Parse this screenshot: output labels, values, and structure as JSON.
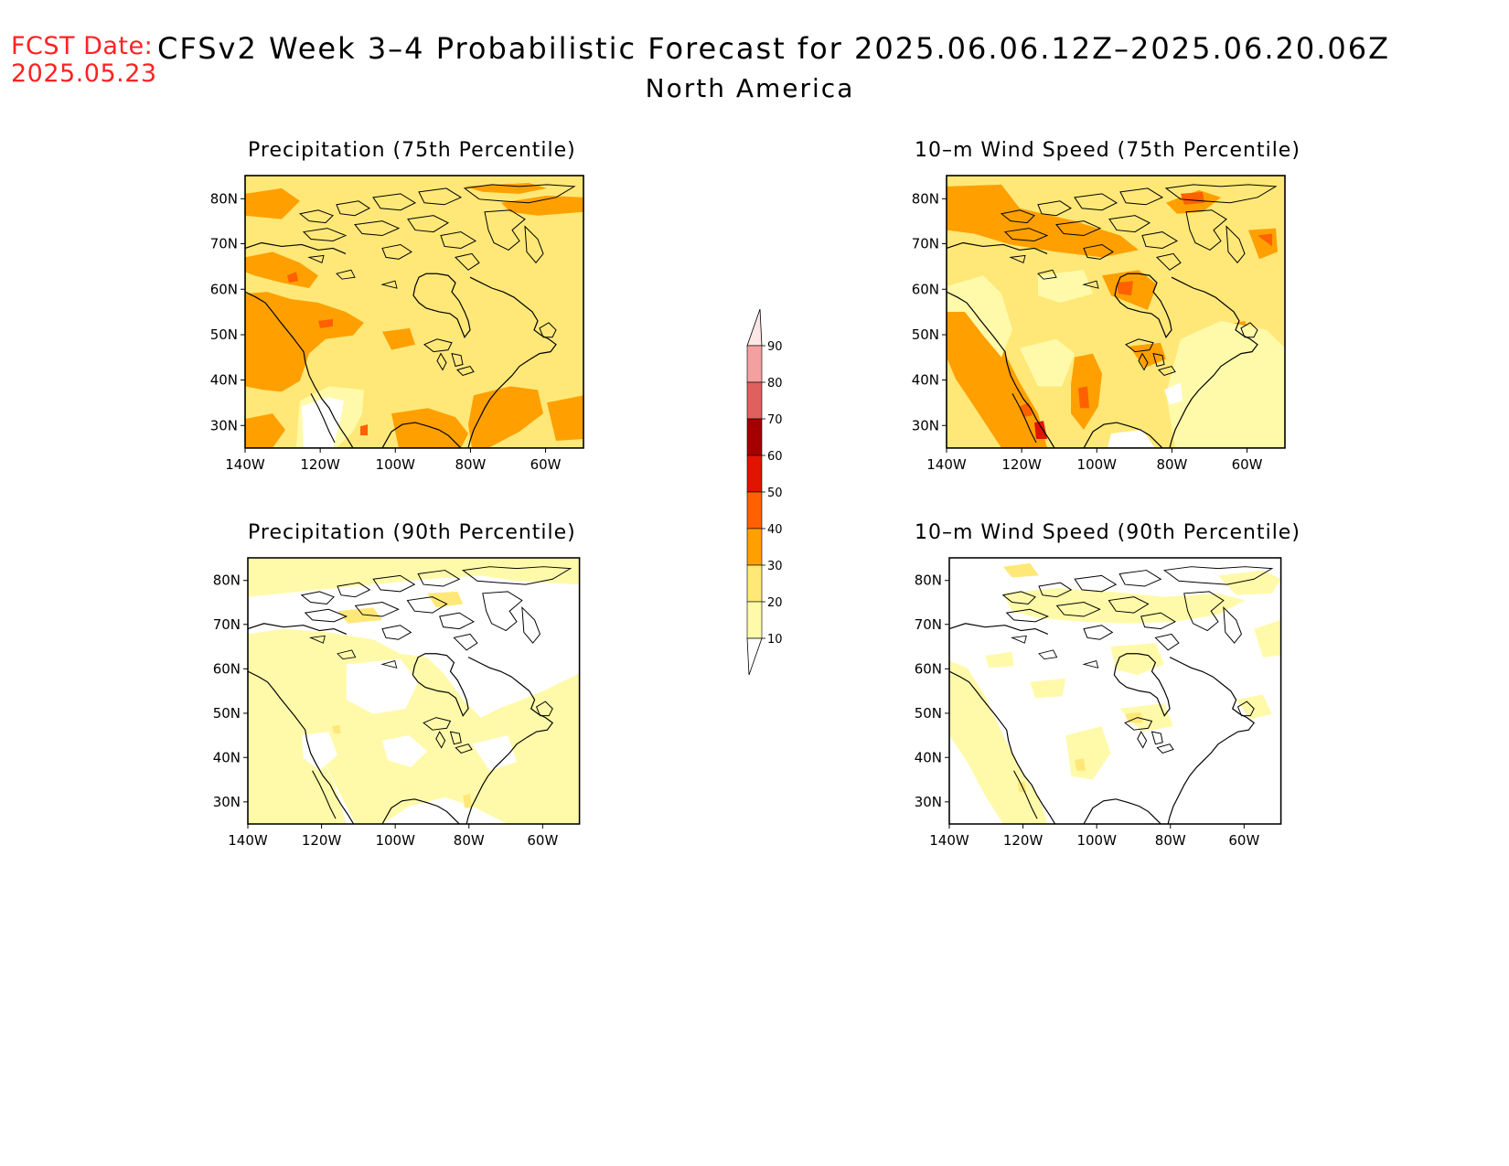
{
  "header": {
    "fcst_label": "FCST Date:",
    "fcst_date": "2025.05.23",
    "title": "CFSv2 Week 3–4 Probabilistic Forecast for 2025.06.06.12Z–2025.06.20.06Z",
    "region": "North America"
  },
  "panels": [
    {
      "id": "precip75",
      "title": "Precipitation (75th Percentile)"
    },
    {
      "id": "wind75",
      "title": "10–m Wind Speed (75th Percentile)"
    },
    {
      "id": "precip90",
      "title": "Precipitation (90th Percentile)"
    },
    {
      "id": "wind90",
      "title": "10–m Wind Speed (90th Percentile)"
    }
  ],
  "axes": {
    "lat_labels": [
      "80N",
      "70N",
      "60N",
      "50N",
      "40N",
      "30N"
    ],
    "lon_labels": [
      "140W",
      "120W",
      "100W",
      "80W",
      "60W"
    ]
  },
  "colorbar": {
    "labels": [
      "10",
      "20",
      "30",
      "40",
      "50",
      "60",
      "70",
      "80",
      "90"
    ],
    "colors": [
      "#fffaaa",
      "#ffe878",
      "#ffa000",
      "#ff6000",
      "#e11400",
      "#a50000",
      "#e06060",
      "#f5a0a0",
      "#ffe6e6"
    ]
  },
  "palette": {
    "c1": "#fffaaa",
    "c2": "#ffe878",
    "c3": "#ffa000",
    "c4": "#ff6000",
    "c5": "#e11400"
  }
}
